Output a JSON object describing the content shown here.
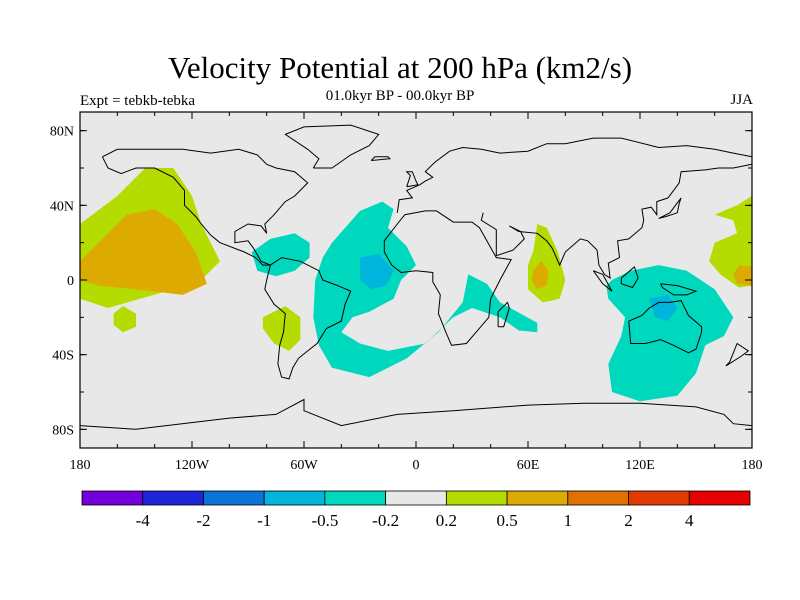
{
  "chart_data": {
    "type": "heatmap",
    "title": "Velocity Potential at 200 hPa (km2/s)",
    "subtitle": "01.0kyr BP - 00.0kyr BP",
    "expt_label": "Expt = tebkb-tebka",
    "season": "JJA",
    "x_ticks": [
      {
        "value": -180,
        "label": "180"
      },
      {
        "value": -120,
        "label": "120W"
      },
      {
        "value": -60,
        "label": "60W"
      },
      {
        "value": 0,
        "label": "0"
      },
      {
        "value": 60,
        "label": "60E"
      },
      {
        "value": 120,
        "label": "120E"
      },
      {
        "value": 180,
        "label": "180"
      }
    ],
    "y_ticks": [
      {
        "value": 80,
        "label": "80N"
      },
      {
        "value": 40,
        "label": "40N"
      },
      {
        "value": 0,
        "label": "0"
      },
      {
        "value": -40,
        "label": "40S"
      },
      {
        "value": -80,
        "label": "80S"
      }
    ],
    "xlim": [
      -180,
      180
    ],
    "ylim": [
      -90,
      90
    ],
    "colorbar": {
      "colors": [
        "#7300d8",
        "#1f24d6",
        "#0a75d6",
        "#00b4dc",
        "#00d8be",
        "#e8e8e8",
        "#b4dc00",
        "#dcaa00",
        "#e07000",
        "#e03a00",
        "#e60000"
      ],
      "labels": [
        "-4",
        "-2",
        "-1",
        "-0.5",
        "-0.2",
        "0.2",
        "0.5",
        "1",
        "2",
        "4"
      ]
    },
    "regions": [
      {
        "level": 0.5,
        "points": [
          [
            -180,
            30
          ],
          [
            -160,
            45
          ],
          [
            -145,
            60
          ],
          [
            -130,
            60
          ],
          [
            -120,
            45
          ],
          [
            -115,
            30
          ],
          [
            -105,
            10
          ],
          [
            -115,
            0
          ],
          [
            -130,
            -5
          ],
          [
            -165,
            -15
          ],
          [
            -180,
            -10
          ]
        ]
      },
      {
        "level": 1,
        "points": [
          [
            -180,
            10
          ],
          [
            -170,
            20
          ],
          [
            -155,
            35
          ],
          [
            -140,
            38
          ],
          [
            -128,
            30
          ],
          [
            -118,
            15
          ],
          [
            -112,
            -2
          ],
          [
            -125,
            -8
          ],
          [
            -150,
            -5
          ],
          [
            -170,
            -3
          ],
          [
            -180,
            0
          ]
        ]
      },
      {
        "level": 0.5,
        "points": [
          [
            -162,
            -18
          ],
          [
            -157,
            -14
          ],
          [
            -150,
            -18
          ],
          [
            -150,
            -25
          ],
          [
            -157,
            -28
          ],
          [
            -162,
            -24
          ]
        ]
      },
      {
        "level": 0.5,
        "points": [
          [
            -82,
            -20
          ],
          [
            -70,
            -14
          ],
          [
            -62,
            -20
          ],
          [
            -62,
            -32
          ],
          [
            -68,
            -38
          ],
          [
            -76,
            -34
          ],
          [
            -82,
            -26
          ]
        ]
      },
      {
        "level": -0.2,
        "points": [
          [
            -88,
            15
          ],
          [
            -78,
            22
          ],
          [
            -65,
            25
          ],
          [
            -57,
            20
          ],
          [
            -57,
            12
          ],
          [
            -65,
            5
          ],
          [
            -75,
            2
          ],
          [
            -85,
            5
          ]
        ]
      },
      {
        "level": -0.2,
        "points": [
          [
            -45,
            20
          ],
          [
            -30,
            37
          ],
          [
            -18,
            42
          ],
          [
            -12,
            38
          ],
          [
            -15,
            28
          ],
          [
            -5,
            18
          ],
          [
            0,
            8
          ],
          [
            -8,
            0
          ],
          [
            -12,
            -10
          ],
          [
            -25,
            -17
          ],
          [
            -34,
            -20
          ],
          [
            -40,
            -28
          ],
          [
            -30,
            -34
          ],
          [
            -15,
            -38
          ],
          [
            5,
            -34
          ],
          [
            20,
            -20
          ],
          [
            30,
            -15
          ],
          [
            45,
            -20
          ],
          [
            55,
            -27
          ],
          [
            65,
            -28
          ],
          [
            65,
            -23
          ],
          [
            45,
            -12
          ],
          [
            38,
            -2
          ],
          [
            28,
            3
          ],
          [
            25,
            -12
          ],
          [
            12,
            -28
          ],
          [
            -5,
            -42
          ],
          [
            -25,
            -52
          ],
          [
            -45,
            -47
          ],
          [
            -52,
            -35
          ],
          [
            -55,
            -20
          ],
          [
            -54,
            0
          ],
          [
            -50,
            12
          ]
        ]
      },
      {
        "level": -0.5,
        "points": [
          [
            -30,
            12
          ],
          [
            -20,
            14
          ],
          [
            -12,
            5
          ],
          [
            -16,
            -3
          ],
          [
            -24,
            -5
          ],
          [
            -30,
            0
          ]
        ]
      },
      {
        "level": 0.5,
        "points": [
          [
            60,
            8
          ],
          [
            63,
            16
          ],
          [
            65,
            30
          ],
          [
            70,
            28
          ],
          [
            76,
            15
          ],
          [
            80,
            0
          ],
          [
            77,
            -10
          ],
          [
            68,
            -12
          ],
          [
            60,
            -5
          ]
        ]
      },
      {
        "level": 1,
        "points": [
          [
            63,
            5
          ],
          [
            67,
            10
          ],
          [
            71,
            5
          ],
          [
            70,
            -3
          ],
          [
            65,
            -5
          ],
          [
            62,
            0
          ]
        ]
      },
      {
        "level": -0.2,
        "points": [
          [
            105,
            0
          ],
          [
            115,
            5
          ],
          [
            130,
            8
          ],
          [
            145,
            5
          ],
          [
            160,
            -5
          ],
          [
            170,
            -20
          ],
          [
            165,
            -30
          ],
          [
            155,
            -35
          ],
          [
            150,
            -50
          ],
          [
            140,
            -62
          ],
          [
            120,
            -65
          ],
          [
            105,
            -60
          ],
          [
            103,
            -45
          ],
          [
            110,
            -30
          ],
          [
            112,
            -20
          ],
          [
            103,
            -10
          ],
          [
            102,
            -3
          ]
        ]
      },
      {
        "level": -0.5,
        "points": [
          [
            125,
            -10
          ],
          [
            135,
            -8
          ],
          [
            140,
            -15
          ],
          [
            135,
            -22
          ],
          [
            128,
            -20
          ]
        ]
      },
      {
        "level": 0.5,
        "points": [
          [
            160,
            35
          ],
          [
            172,
            40
          ],
          [
            180,
            45
          ],
          [
            180,
            -3
          ],
          [
            173,
            -4
          ],
          [
            163,
            3
          ],
          [
            157,
            10
          ],
          [
            160,
            20
          ],
          [
            172,
            25
          ],
          [
            170,
            32
          ]
        ]
      },
      {
        "level": 1,
        "points": [
          [
            172,
            -2
          ],
          [
            180,
            -3
          ],
          [
            180,
            7
          ],
          [
            173,
            8
          ],
          [
            170,
            3
          ]
        ]
      }
    ]
  }
}
